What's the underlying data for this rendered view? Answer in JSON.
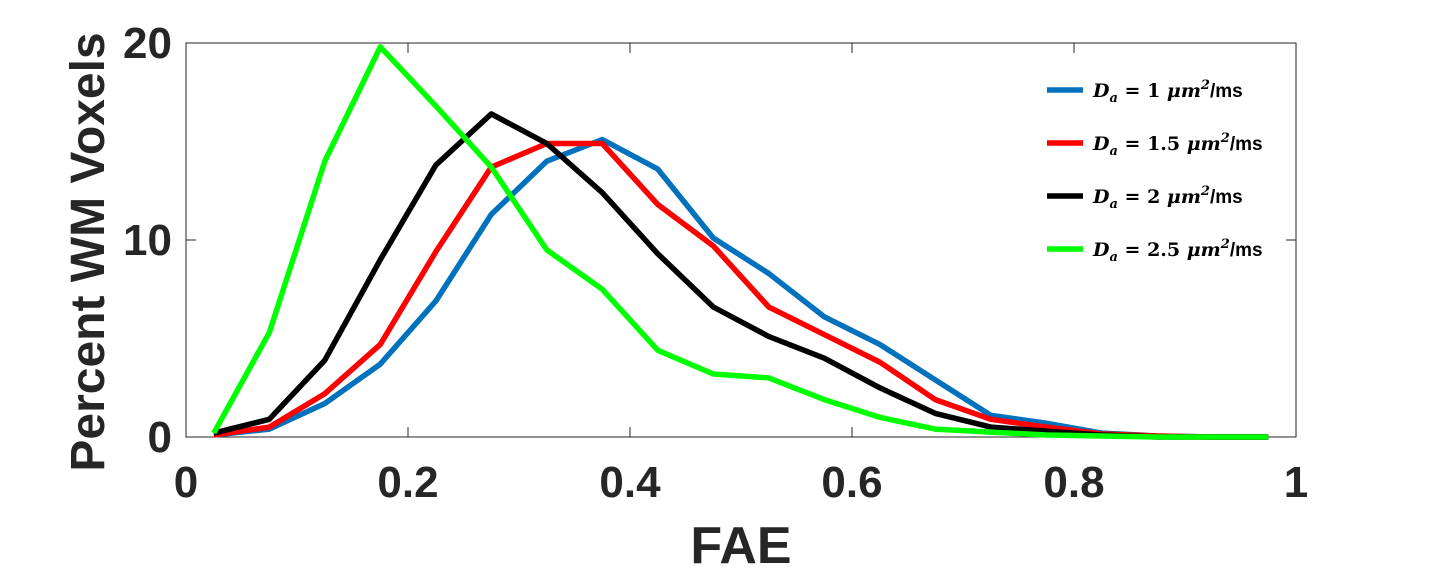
{
  "chart_data": {
    "type": "line",
    "title": "",
    "xlabel": "FAE",
    "ylabel": "Percent WM Voxels",
    "xlim": [
      0,
      1
    ],
    "ylim": [
      0,
      20
    ],
    "xticks": [
      0,
      0.2,
      0.4,
      0.6,
      0.8,
      1
    ],
    "xtick_labels": [
      "0",
      "0.2",
      "0.4",
      "0.6",
      "0.8",
      "1"
    ],
    "yticks": [
      0,
      10,
      20
    ],
    "ytick_labels": [
      "0",
      "10",
      "20"
    ],
    "grid": false,
    "legend_position": "top-right",
    "x": [
      0.025,
      0.075,
      0.125,
      0.175,
      0.225,
      0.275,
      0.325,
      0.375,
      0.425,
      0.475,
      0.525,
      0.575,
      0.625,
      0.675,
      0.725,
      0.775,
      0.825,
      0.875,
      0.925,
      0.975
    ],
    "series": [
      {
        "legend": {
          "symbol": "D",
          "sub": "a",
          "value": "= 1",
          "unit_base": "μm",
          "unit_sup": "2",
          "unit_tail": "/ms"
        },
        "color": "#0072BD",
        "values": [
          0.1,
          0.4,
          1.7,
          3.7,
          6.9,
          11.3,
          14.0,
          15.1,
          13.6,
          10.1,
          8.3,
          6.1,
          4.7,
          2.9,
          1.1,
          0.7,
          0.2,
          0.05,
          0.0,
          0.0
        ]
      },
      {
        "legend": {
          "symbol": "D",
          "sub": "a",
          "value": "= 1.5",
          "unit_base": "μm",
          "unit_sup": "2",
          "unit_tail": "/ms"
        },
        "color": "#FF0000",
        "values": [
          0.1,
          0.5,
          2.2,
          4.7,
          9.4,
          13.7,
          14.9,
          14.9,
          11.8,
          9.7,
          6.6,
          5.2,
          3.8,
          1.9,
          0.9,
          0.5,
          0.15,
          0.05,
          0.0,
          0.0
        ]
      },
      {
        "legend": {
          "symbol": "D",
          "sub": "a",
          "value": "= 2",
          "unit_base": "μm",
          "unit_sup": "2",
          "unit_tail": "/ms"
        },
        "color": "#000000",
        "values": [
          0.2,
          0.9,
          3.9,
          9.0,
          13.8,
          16.4,
          14.9,
          12.4,
          9.3,
          6.6,
          5.1,
          4.0,
          2.5,
          1.2,
          0.5,
          0.3,
          0.1,
          0.0,
          0.0,
          0.0
        ]
      },
      {
        "legend": {
          "symbol": "D",
          "sub": "a",
          "value": "= 2.5",
          "unit_base": "μm",
          "unit_sup": "2",
          "unit_tail": "/ms"
        },
        "color": "#00FF00",
        "values": [
          0.2,
          5.3,
          14.0,
          19.8,
          16.8,
          13.7,
          9.5,
          7.5,
          4.4,
          3.2,
          3.0,
          1.9,
          1.0,
          0.4,
          0.25,
          0.1,
          0.05,
          0.0,
          0.0,
          0.0
        ]
      }
    ]
  }
}
